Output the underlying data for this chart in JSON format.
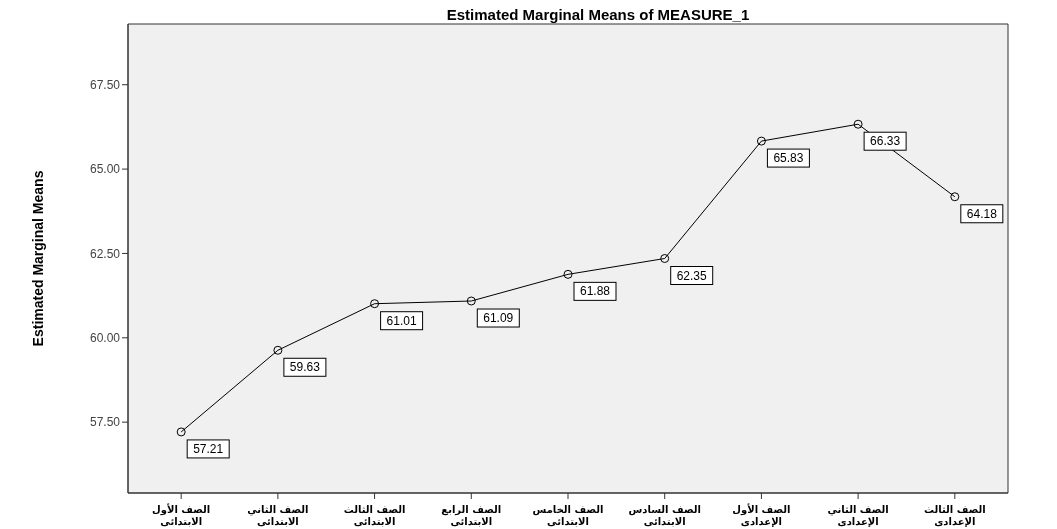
{
  "chart_data": {
    "type": "line",
    "title": "Estimated Marginal Means of MEASURE_1",
    "ylabel": "Estimated Marginal Means",
    "categories": [
      "الصف الأول الابتدائي",
      "الصف الثاني الابتدائي",
      "الصف الثالث الابتدائي",
      "الصف الرابع الابتدائي",
      "الصف الخامس الابتدائي",
      "الصف السادس الابتدائي",
      "الصف الأول الإعدادي",
      "الصف الثاني الإعدادي",
      "الصف الثالث الإعدادي"
    ],
    "values": [
      57.21,
      59.63,
      61.01,
      61.09,
      61.88,
      62.35,
      65.83,
      66.33,
      64.18
    ],
    "color": "#000000",
    "ylim": [
      55.4,
      69.3
    ],
    "yticks": [
      {
        "value": 57.5,
        "label": "57.50"
      },
      {
        "value": 60,
        "label": "60.00"
      },
      {
        "value": 62.5,
        "label": "62.50"
      },
      {
        "value": 65,
        "label": "65.00"
      },
      {
        "value": 67.5,
        "label": "67.50"
      }
    ],
    "grid": false,
    "marker": "circle",
    "line_style": "solid",
    "data_labels": true
  }
}
